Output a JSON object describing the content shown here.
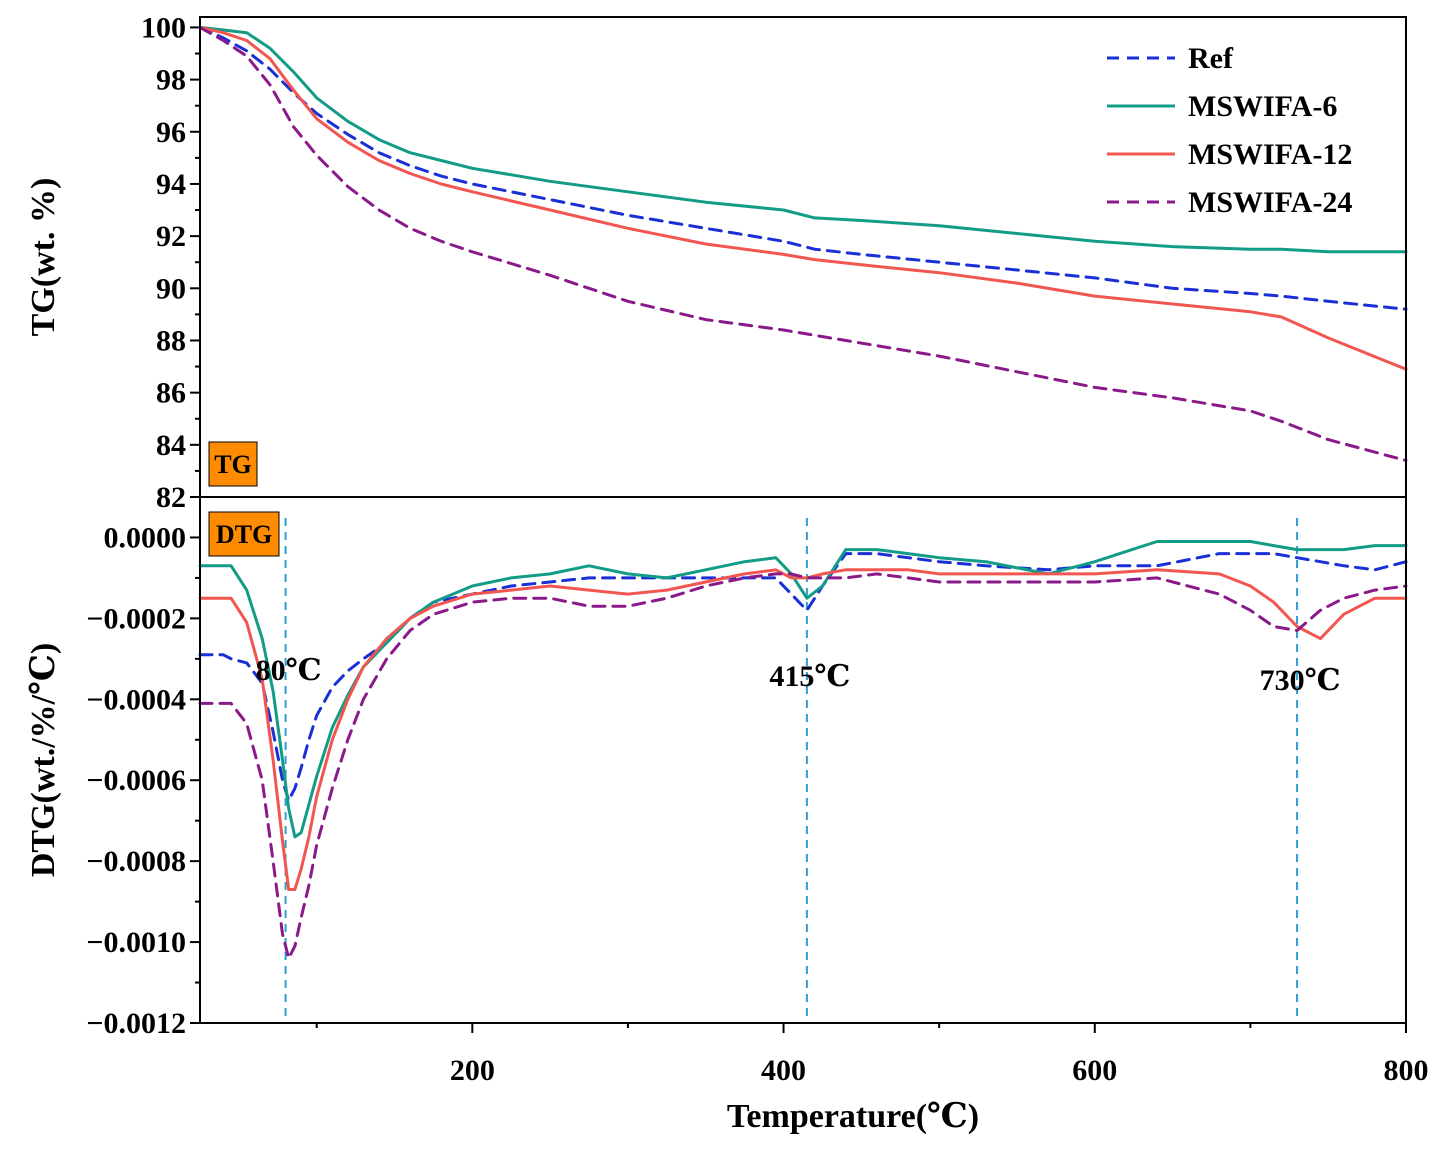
{
  "chart_data": {
    "type": "line",
    "xlabel": "Temperature(℃)",
    "xlim": [
      25,
      800
    ],
    "xticks": [
      200,
      400,
      600,
      800
    ],
    "colors": {
      "Ref": "#1a2fd6",
      "MSWIFA-6": "#129c86",
      "MSWIFA-12": "#f25650",
      "MSWIFA-24": "#8a1a8a",
      "peak_line": "#2e9fd0",
      "badge": "#ff8c00"
    },
    "legend": [
      "Ref",
      "MSWIFA-6",
      "MSWIFA-12",
      "MSWIFA-24"
    ],
    "legend_position": "top-right",
    "panels": [
      {
        "name": "TG",
        "badge": "TG",
        "ylabel": "TG(wt. %)",
        "ylim": [
          82,
          100.4
        ],
        "yticks": [
          82,
          84,
          86,
          88,
          90,
          92,
          94,
          96,
          98,
          100
        ],
        "yticklabels": [
          "82",
          "84",
          "86",
          "88",
          "90",
          "92",
          "94",
          "96",
          "98",
          "100"
        ],
        "x": [
          25,
          40,
          55,
          70,
          85,
          100,
          120,
          140,
          160,
          180,
          200,
          250,
          300,
          350,
          400,
          420,
          450,
          500,
          550,
          600,
          650,
          700,
          720,
          750,
          800
        ],
        "series": [
          {
            "name": "Ref",
            "style": "dashed",
            "values": [
              100,
              99.6,
              99.1,
              98.4,
              97.5,
              96.7,
              95.9,
              95.2,
              94.7,
              94.3,
              94.0,
              93.4,
              92.8,
              92.3,
              91.8,
              91.5,
              91.3,
              91.0,
              90.7,
              90.4,
              90.0,
              89.8,
              89.7,
              89.5,
              89.2
            ]
          },
          {
            "name": "MSWIFA-6",
            "style": "solid",
            "values": [
              100,
              99.9,
              99.8,
              99.2,
              98.3,
              97.3,
              96.4,
              95.7,
              95.2,
              94.9,
              94.6,
              94.1,
              93.7,
              93.3,
              93.0,
              92.7,
              92.6,
              92.4,
              92.1,
              91.8,
              91.6,
              91.5,
              91.5,
              91.4,
              91.4
            ]
          },
          {
            "name": "MSWIFA-12",
            "style": "solid",
            "values": [
              100,
              99.8,
              99.5,
              98.8,
              97.6,
              96.5,
              95.6,
              94.9,
              94.4,
              94.0,
              93.7,
              93.0,
              92.3,
              91.7,
              91.3,
              91.1,
              90.9,
              90.6,
              90.2,
              89.7,
              89.4,
              89.1,
              88.9,
              88.1,
              86.9
            ]
          },
          {
            "name": "MSWIFA-24",
            "style": "dashed",
            "values": [
              100,
              99.5,
              98.9,
              97.8,
              96.2,
              95.1,
              93.9,
              93.0,
              92.3,
              91.8,
              91.4,
              90.5,
              89.5,
              88.8,
              88.4,
              88.2,
              87.9,
              87.4,
              86.8,
              86.2,
              85.8,
              85.3,
              84.9,
              84.2,
              83.4
            ]
          }
        ]
      },
      {
        "name": "DTG",
        "badge": "DTG",
        "ylabel": "DTG(wt./%/℃)",
        "ylim": [
          -0.0012,
          0.0001
        ],
        "yticks": [
          -0.0012,
          -0.001,
          -0.0008,
          -0.0006,
          -0.0004,
          -0.0002,
          0
        ],
        "yticklabels": [
          "−0.0012",
          "−0.0010",
          "−0.0008",
          "−0.0006",
          "−0.0004",
          "−0.0002",
          "0.0000"
        ],
        "x": [
          25,
          40,
          45,
          55,
          65,
          72,
          78,
          82,
          86,
          90,
          95,
          100,
          110,
          120,
          130,
          145,
          160,
          175,
          200,
          225,
          250,
          275,
          300,
          325,
          350,
          375,
          395,
          405,
          415,
          425,
          440,
          460,
          480,
          500,
          530,
          570,
          600,
          640,
          680,
          700,
          715,
          730,
          745,
          760,
          780,
          800
        ],
        "series": [
          {
            "name": "Ref",
            "style": "dashed",
            "values": [
              -0.00029,
              -0.00029,
              -0.0003,
              -0.00031,
              -0.00036,
              -0.00048,
              -0.0006,
              -0.00065,
              -0.00062,
              -0.00057,
              -0.0005,
              -0.00044,
              -0.00037,
              -0.00033,
              -0.0003,
              -0.00026,
              -0.0002,
              -0.00016,
              -0.00014,
              -0.00012,
              -0.00011,
              -0.0001,
              -0.0001,
              -0.0001,
              -0.0001,
              -0.0001,
              -0.0001,
              -0.00014,
              -0.00018,
              -0.00012,
              -4e-05,
              -4e-05,
              -5e-05,
              -6e-05,
              -7e-05,
              -8e-05,
              -7e-05,
              -7e-05,
              -4e-05,
              -4e-05,
              -4e-05,
              -5e-05,
              -6e-05,
              -7e-05,
              -8e-05,
              -6e-05
            ]
          },
          {
            "name": "MSWIFA-6",
            "style": "solid",
            "values": [
              -7e-05,
              -7e-05,
              -7e-05,
              -0.00013,
              -0.00025,
              -0.00038,
              -0.00055,
              -0.00067,
              -0.00074,
              -0.00073,
              -0.00066,
              -0.00059,
              -0.00047,
              -0.00039,
              -0.00032,
              -0.00026,
              -0.0002,
              -0.00016,
              -0.00012,
              -0.0001,
              -9e-05,
              -7e-05,
              -9e-05,
              -0.0001,
              -8e-05,
              -6e-05,
              -5e-05,
              -9e-05,
              -0.00015,
              -0.00012,
              -3e-05,
              -3e-05,
              -4e-05,
              -5e-05,
              -6e-05,
              -9e-05,
              -6e-05,
              -1e-05,
              -1e-05,
              -1e-05,
              -2e-05,
              -3e-05,
              -3e-05,
              -3e-05,
              -2e-05,
              -2e-05
            ]
          },
          {
            "name": "MSWIFA-12",
            "style": "solid",
            "values": [
              -0.00015,
              -0.00015,
              -0.00015,
              -0.00021,
              -0.00035,
              -0.00055,
              -0.00075,
              -0.00087,
              -0.00087,
              -0.00082,
              -0.00074,
              -0.00064,
              -0.0005,
              -0.0004,
              -0.00032,
              -0.00025,
              -0.0002,
              -0.00017,
              -0.00014,
              -0.00013,
              -0.00012,
              -0.00013,
              -0.00014,
              -0.00013,
              -0.00011,
              -9e-05,
              -8e-05,
              -0.0001,
              -0.0001,
              -9e-05,
              -8e-05,
              -8e-05,
              -8e-05,
              -9e-05,
              -9e-05,
              -9e-05,
              -9e-05,
              -8e-05,
              -9e-05,
              -0.00012,
              -0.00016,
              -0.00022,
              -0.00025,
              -0.00019,
              -0.00015,
              -0.00015
            ]
          },
          {
            "name": "MSWIFA-24",
            "style": "dashed",
            "values": [
              -0.00041,
              -0.00041,
              -0.00041,
              -0.00046,
              -0.0006,
              -0.0008,
              -0.00098,
              -0.00104,
              -0.00101,
              -0.00094,
              -0.00086,
              -0.00076,
              -0.00062,
              -0.0005,
              -0.0004,
              -0.0003,
              -0.00023,
              -0.00019,
              -0.00016,
              -0.00015,
              -0.00015,
              -0.00017,
              -0.00017,
              -0.00015,
              -0.00012,
              -0.0001,
              -9e-05,
              -9e-05,
              -0.0001,
              -0.0001,
              -0.0001,
              -9e-05,
              -0.0001,
              -0.00011,
              -0.00011,
              -0.00011,
              -0.00011,
              -0.0001,
              -0.00014,
              -0.00018,
              -0.00022,
              -0.00023,
              -0.00018,
              -0.00015,
              -0.00013,
              -0.00012
            ]
          }
        ]
      }
    ],
    "annotations": [
      {
        "text": "80℃",
        "x": 80
      },
      {
        "text": "415℃",
        "x": 415
      },
      {
        "text": "730℃",
        "x": 730
      }
    ]
  }
}
